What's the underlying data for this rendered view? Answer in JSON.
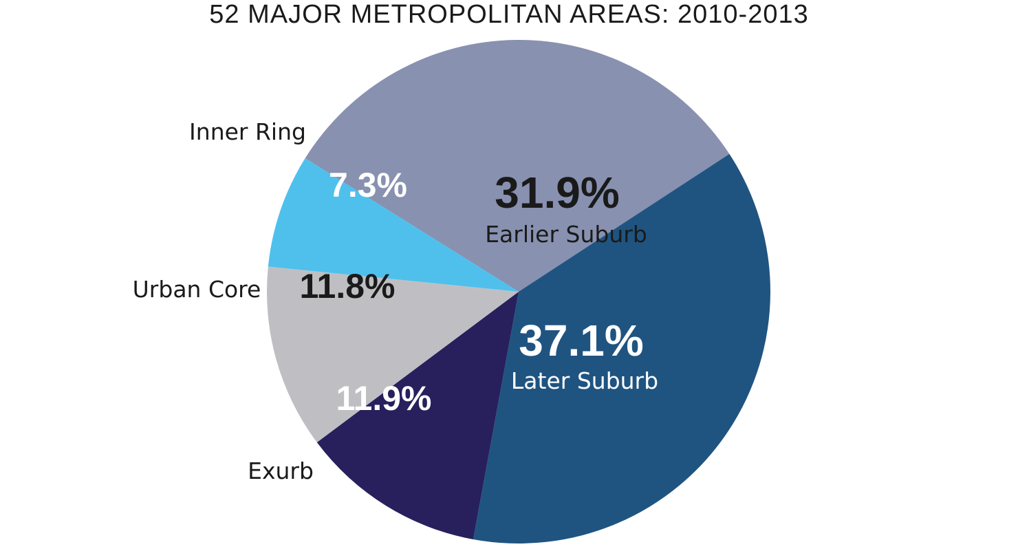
{
  "chart_data": {
    "type": "pie",
    "title": "52 MAJOR METROPOLITAN AREAS: 2010-2013",
    "slices": [
      {
        "label": "Earlier Suburb",
        "value_label": "31.9%",
        "value": 31.9,
        "color": "#8891b0",
        "value_color": "#1a1a1a",
        "label_placement": "inside"
      },
      {
        "label": "Later Suburb",
        "value_label": "37.1%",
        "value": 37.1,
        "color": "#1f5481",
        "value_color": "#ffffff",
        "label_placement": "inside"
      },
      {
        "label": "Exurb",
        "value_label": "11.9%",
        "value": 11.9,
        "color": "#281f5d",
        "value_color": "#ffffff",
        "label_placement": "outside"
      },
      {
        "label": "Urban Core",
        "value_label": "11.8%",
        "value": 11.8,
        "color": "#bfbfc3",
        "value_color": "#1a1a1a",
        "label_placement": "outside"
      },
      {
        "label": "Inner Ring",
        "value_label": "7.3%",
        "value": 7.3,
        "color": "#4fc0ec",
        "value_color": "#ffffff",
        "label_placement": "outside"
      }
    ]
  }
}
